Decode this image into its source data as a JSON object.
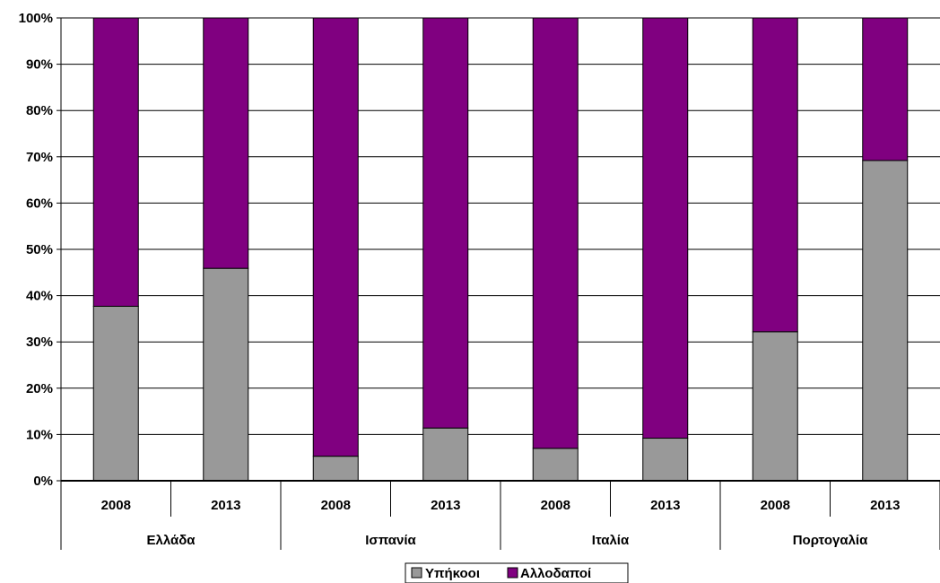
{
  "chart_data": {
    "type": "bar",
    "stacked": true,
    "percent": true,
    "ylim": [
      0,
      100
    ],
    "y_ticks": [
      "0%",
      "10%",
      "20%",
      "30%",
      "40%",
      "50%",
      "60%",
      "70%",
      "80%",
      "90%",
      "100%"
    ],
    "categories": [
      "2008",
      "2013",
      "2008",
      "2013",
      "2008",
      "2013",
      "2008",
      "2013"
    ],
    "groups": [
      "Ελλάδα",
      "Ισπανία",
      "Ιταλία",
      "Πορτογαλία"
    ],
    "series": [
      {
        "name": "Υπήκοοι",
        "color": "#999999",
        "values": [
          37.7,
          45.9,
          5.3,
          11.4,
          7.0,
          9.2,
          32.2,
          69.2
        ]
      },
      {
        "name": "Αλλοδαποί",
        "color": "#800080",
        "values": [
          62.3,
          54.1,
          94.7,
          88.6,
          93.0,
          90.8,
          67.8,
          30.8
        ]
      }
    ],
    "title": "",
    "xlabel": "",
    "ylabel": "",
    "grid": true,
    "legend_position": "bottom"
  }
}
